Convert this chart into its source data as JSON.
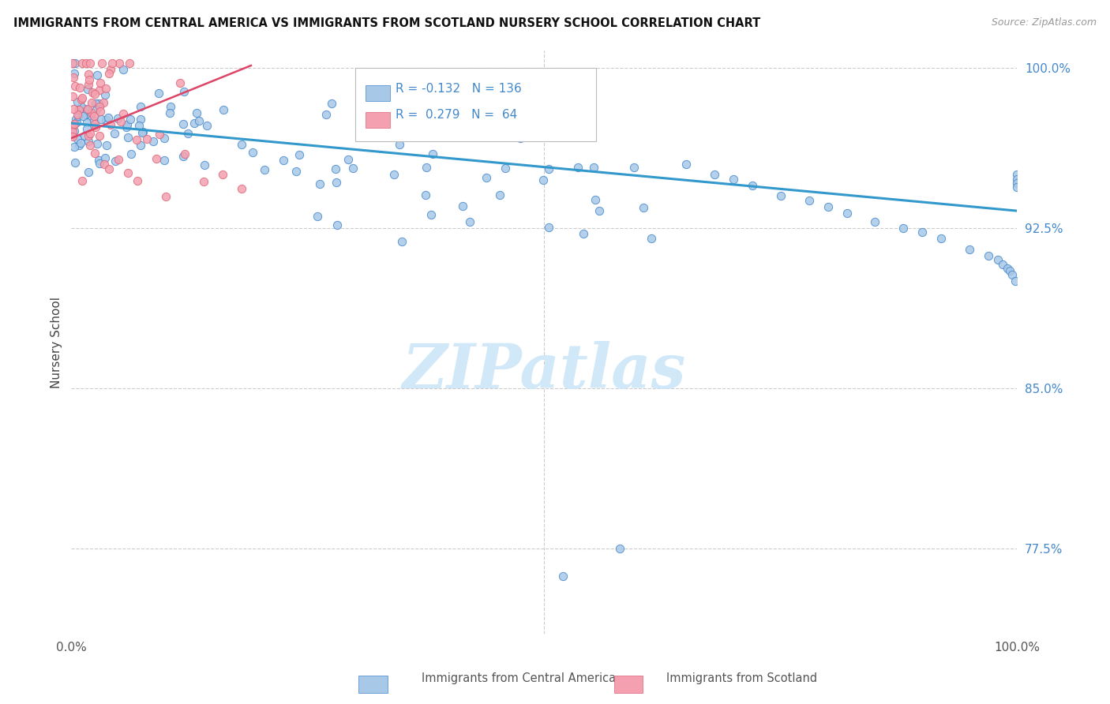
{
  "title": "IMMIGRANTS FROM CENTRAL AMERICA VS IMMIGRANTS FROM SCOTLAND NURSERY SCHOOL CORRELATION CHART",
  "source": "Source: ZipAtlas.com",
  "ylabel": "Nursery School",
  "legend_label_1": "Immigrants from Central America",
  "legend_label_2": "Immigrants from Scotland",
  "r1": "-0.132",
  "n1": "136",
  "r2": "0.279",
  "n2": "64",
  "color_blue": "#a8c8e8",
  "color_pink": "#f4a0b0",
  "edge_blue": "#4488cc",
  "edge_pink": "#dd6677",
  "line_blue": "#3399cc",
  "line_pink": "#dd4466",
  "watermark_color": "#d0e8f8",
  "ytick_labels": [
    "77.5%",
    "85.0%",
    "92.5%",
    "100.0%"
  ],
  "ytick_values": [
    0.775,
    0.85,
    0.925,
    1.0
  ],
  "xlim": [
    0.0,
    1.0
  ],
  "ylim": [
    0.735,
    1.008
  ]
}
